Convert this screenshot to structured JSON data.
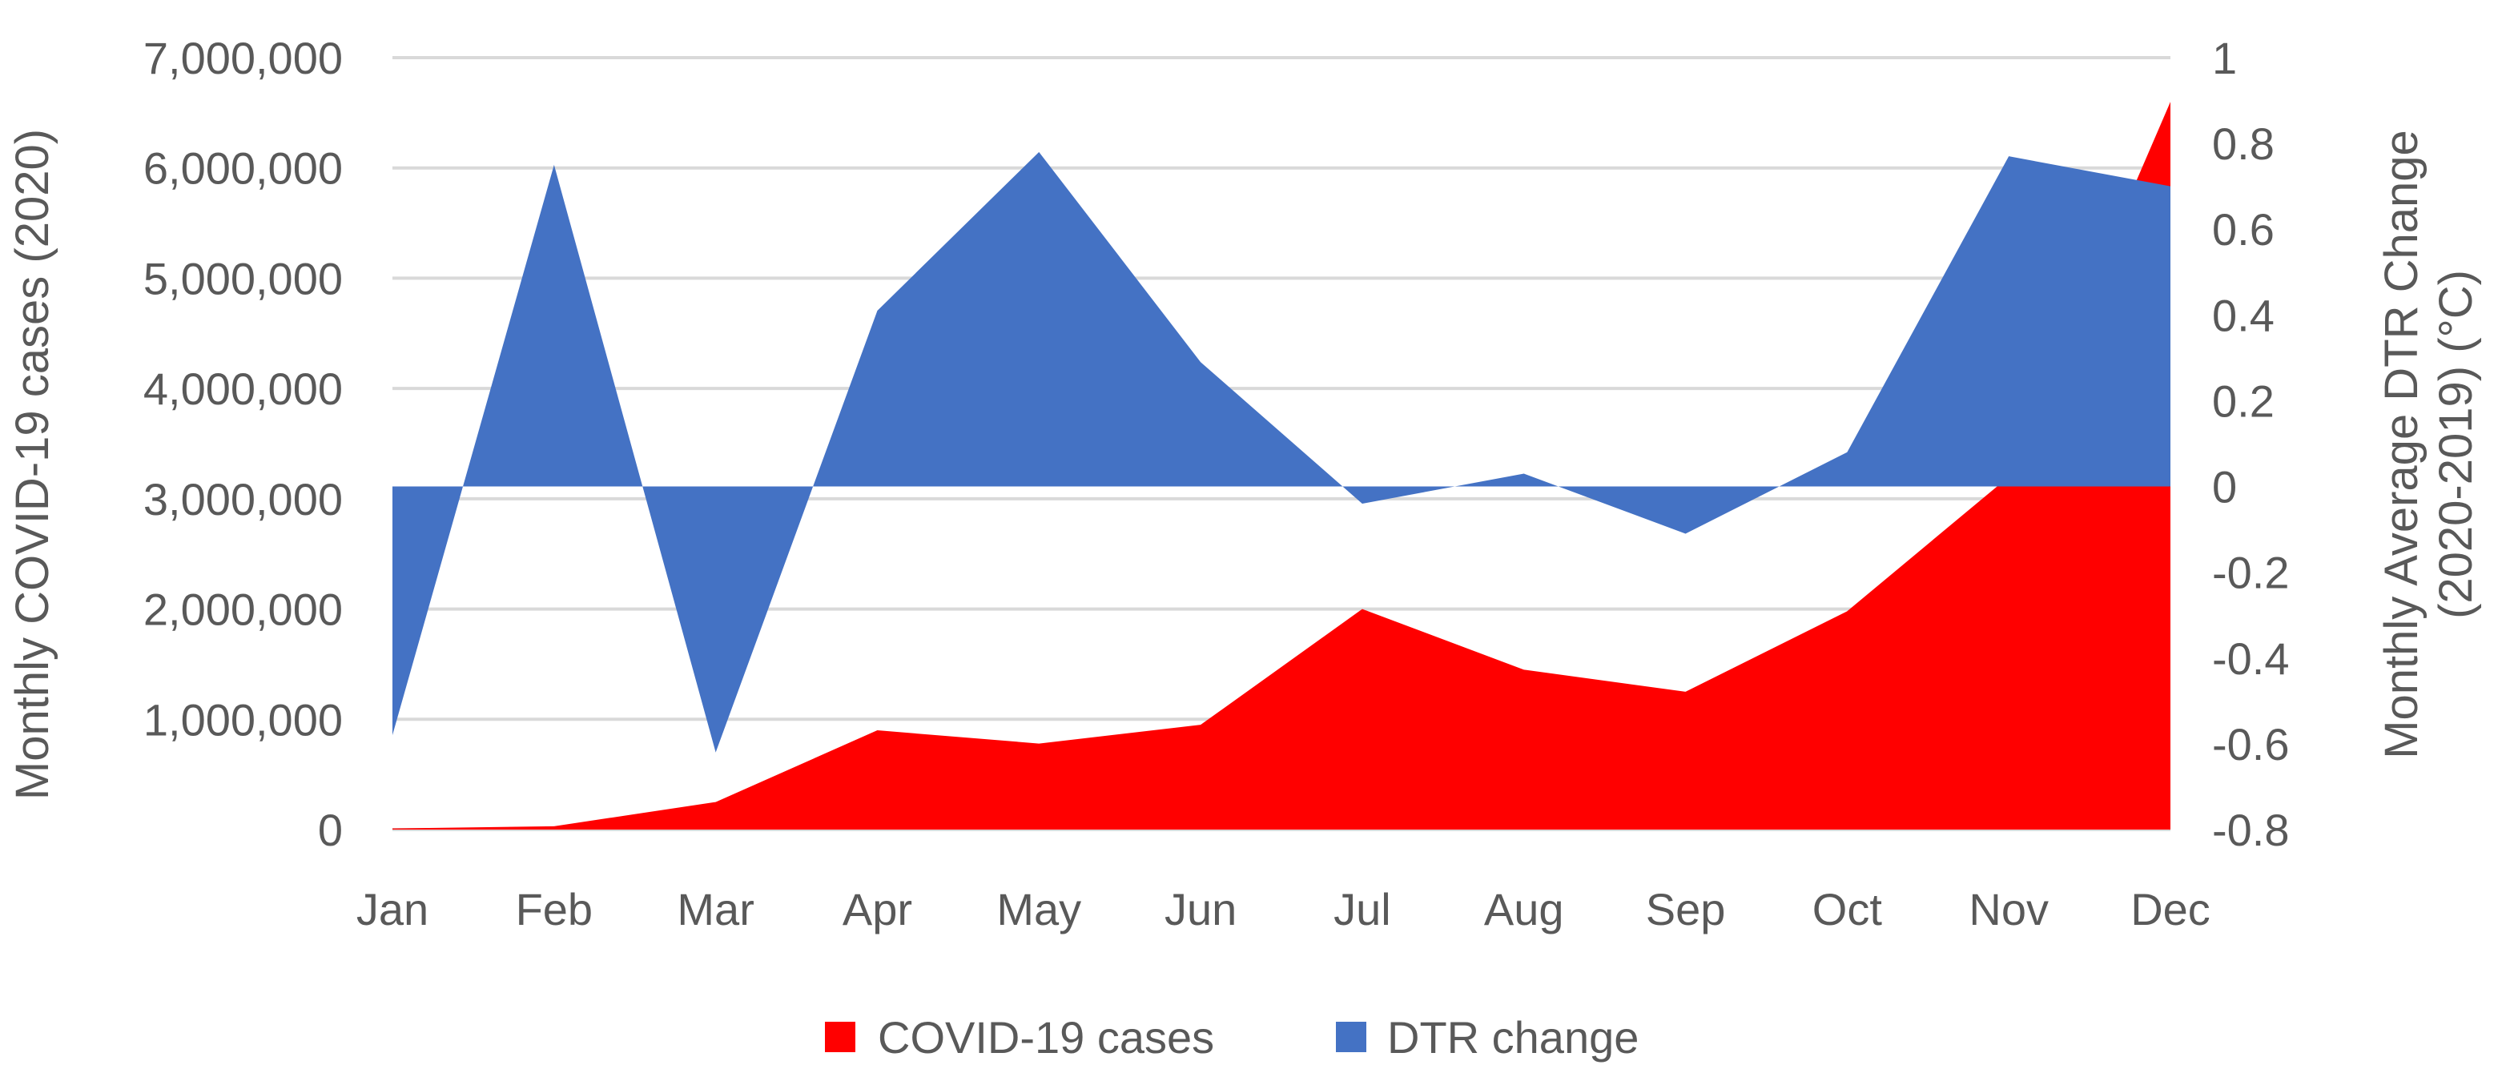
{
  "chart_data": {
    "type": "area",
    "title": "",
    "categories": [
      "Jan",
      "Feb",
      "Mar",
      "Apr",
      "May",
      "Jun",
      "Jul",
      "Aug",
      "Sep",
      "Oct",
      "Nov",
      "Dec"
    ],
    "series": [
      {
        "name": "COVID-19 cases",
        "axis": "left",
        "color": "#FF0000",
        "values": [
          10000,
          30000,
          250000,
          900000,
          780000,
          950000,
          2000000,
          1450000,
          1250000,
          1980000,
          3200000,
          6600000
        ]
      },
      {
        "name": "DTR change",
        "axis": "right",
        "color": "#4472C4",
        "values": [
          -0.58,
          0.75,
          -0.62,
          0.41,
          0.78,
          0.29,
          -0.04,
          0.03,
          -0.11,
          0.08,
          0.77,
          0.7
        ]
      }
    ],
    "y_left": {
      "label": "Monthly COVID-19 cases (2020)",
      "range": [
        0,
        7000000
      ],
      "ticks": [
        "0",
        "1,000,000",
        "2,000,000",
        "3,000,000",
        "4,000,000",
        "5,000,000",
        "6,000,000",
        "7,000,000"
      ]
    },
    "y_right": {
      "label_line1": "Monthly Average DTR Change",
      "label_line2": "(2020-2019) (°C)",
      "range": [
        -0.8,
        1.0
      ],
      "ticks": [
        "-0.8",
        "-0.6",
        "-0.4",
        "-0.2",
        "0",
        "0.2",
        "0.4",
        "0.6",
        "0.8",
        "1"
      ]
    },
    "grid": true,
    "gridline_color": "#D9D9D9",
    "legend": {
      "position": "bottom",
      "items": [
        "COVID-19 cases",
        "DTR change"
      ]
    }
  }
}
